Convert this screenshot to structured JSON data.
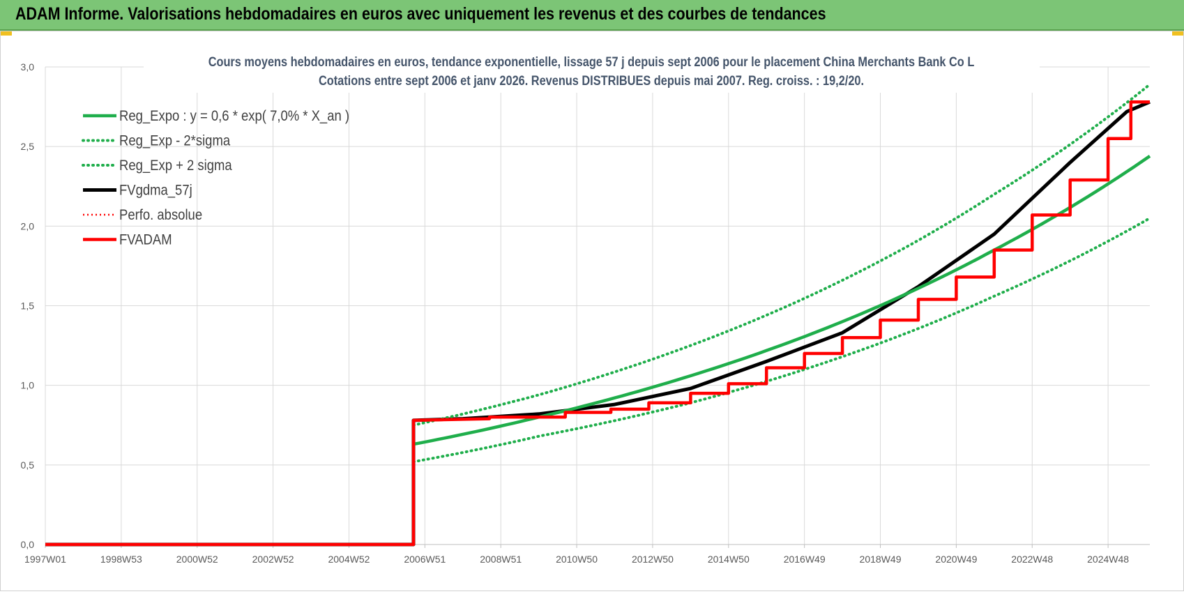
{
  "banner": {
    "title": "ADAM Informe. Valorisations hebdomadaires en euros avec uniquement les revenus et des courbes de tendances"
  },
  "colors": {
    "banner_bg": "#7cc576",
    "reg_green": "#1fae4b",
    "fv_red": "#ff0000",
    "fvgdma_black": "#000000",
    "grid": "#d9d9d9"
  },
  "chart_data": {
    "type": "line",
    "title": "Cours moyens hebdomadaires en euros, tendance exponentielle, lissage 57 j depuis sept 2006 pour le placement China Merchants Bank Co L",
    "subtitle": "Cotations entre sept 2006 et janv 2026. Revenus DISTRIBUES depuis mai 2007. Reg. croiss. : 19,2/20.",
    "xlabel": "",
    "ylabel": "",
    "x_tick_labels": [
      "1997W01",
      "1998W53",
      "2000W52",
      "2002W52",
      "2004W52",
      "2006W51",
      "2008W51",
      "2010W50",
      "2012W50",
      "2014W50",
      "2016W49",
      "2018W49",
      "2020W49",
      "2022W48",
      "2024W48"
    ],
    "x_tick_years": [
      1997.0,
      1999.0,
      2001.0,
      2003.0,
      2005.0,
      2007.0,
      2009.0,
      2011.0,
      2013.0,
      2015.0,
      2017.0,
      2019.0,
      2021.0,
      2023.0,
      2025.0
    ],
    "xlim": [
      1997.0,
      2026.1
    ],
    "ylim": [
      0,
      3.0
    ],
    "y_ticks": [
      0,
      0.5,
      1.0,
      1.5,
      2.0,
      2.5,
      3.0
    ],
    "y_tick_labels": [
      "0,0",
      "0,5",
      "1,0",
      "1,5",
      "2,0",
      "2,5",
      "3,0"
    ],
    "grid": true,
    "legend_position": "top-left",
    "series": [
      {
        "name": "Reg_Expo : y = 0,6 * exp( 7,0% *  X_an )",
        "style": "solid-green",
        "points": [
          [
            2006.7,
            0.63
          ],
          [
            2010,
            0.8
          ],
          [
            2014,
            1.06
          ],
          [
            2018,
            1.4
          ],
          [
            2022,
            1.85
          ],
          [
            2026.1,
            2.44
          ]
        ]
      },
      {
        "name": "Reg_Exp - 2*sigma",
        "style": "dotted-green",
        "points": [
          [
            2006.7,
            0.52
          ],
          [
            2010,
            0.68
          ],
          [
            2014,
            0.89
          ],
          [
            2018,
            1.18
          ],
          [
            2022,
            1.56
          ],
          [
            2026.1,
            2.05
          ]
        ]
      },
      {
        "name": "Reg_Exp + 2 sigma",
        "style": "dotted-green",
        "points": [
          [
            2006.7,
            0.75
          ],
          [
            2010,
            0.94
          ],
          [
            2014,
            1.25
          ],
          [
            2018,
            1.66
          ],
          [
            2022,
            2.2
          ],
          [
            2026.1,
            2.89
          ]
        ]
      },
      {
        "name": "FVgdma_57j",
        "style": "solid-black",
        "points": [
          [
            1997.0,
            0
          ],
          [
            2006.7,
            0
          ],
          [
            2006.7,
            0.78
          ],
          [
            2008,
            0.79
          ],
          [
            2010,
            0.82
          ],
          [
            2012,
            0.88
          ],
          [
            2014,
            0.98
          ],
          [
            2016,
            1.15
          ],
          [
            2018,
            1.33
          ],
          [
            2020,
            1.62
          ],
          [
            2022,
            1.95
          ],
          [
            2024,
            2.4
          ],
          [
            2025.5,
            2.72
          ],
          [
            2026.1,
            2.78
          ]
        ]
      },
      {
        "name": "Perfo. absolue",
        "style": "dotted-red",
        "points": [
          [
            1997.0,
            0
          ],
          [
            2006.7,
            0
          ],
          [
            2006.7,
            0.78
          ],
          [
            2026.1,
            2.79
          ]
        ]
      },
      {
        "name": "FVADAM",
        "style": "step-red",
        "points": [
          [
            1997.0,
            0
          ],
          [
            2006.7,
            0
          ],
          [
            2006.7,
            0.78
          ],
          [
            2008.7,
            0.79
          ],
          [
            2008.7,
            0.8
          ],
          [
            2010.7,
            0.8
          ],
          [
            2010.7,
            0.83
          ],
          [
            2011.9,
            0.83
          ],
          [
            2011.9,
            0.85
          ],
          [
            2012.9,
            0.85
          ],
          [
            2012.9,
            0.89
          ],
          [
            2014.0,
            0.89
          ],
          [
            2014.0,
            0.95
          ],
          [
            2015.0,
            0.95
          ],
          [
            2015.0,
            1.01
          ],
          [
            2016.0,
            1.01
          ],
          [
            2016.0,
            1.11
          ],
          [
            2017.0,
            1.11
          ],
          [
            2017.0,
            1.2
          ],
          [
            2018.0,
            1.2
          ],
          [
            2018.0,
            1.3
          ],
          [
            2019.0,
            1.3
          ],
          [
            2019.0,
            1.41
          ],
          [
            2020.0,
            1.41
          ],
          [
            2020.0,
            1.54
          ],
          [
            2021.0,
            1.54
          ],
          [
            2021.0,
            1.68
          ],
          [
            2022.0,
            1.68
          ],
          [
            2022.0,
            1.85
          ],
          [
            2023.0,
            1.85
          ],
          [
            2023.0,
            2.07
          ],
          [
            2024.0,
            2.07
          ],
          [
            2024.0,
            2.29
          ],
          [
            2025.0,
            2.29
          ],
          [
            2025.0,
            2.55
          ],
          [
            2025.6,
            2.55
          ],
          [
            2025.6,
            2.78
          ],
          [
            2026.1,
            2.78
          ]
        ]
      }
    ]
  }
}
